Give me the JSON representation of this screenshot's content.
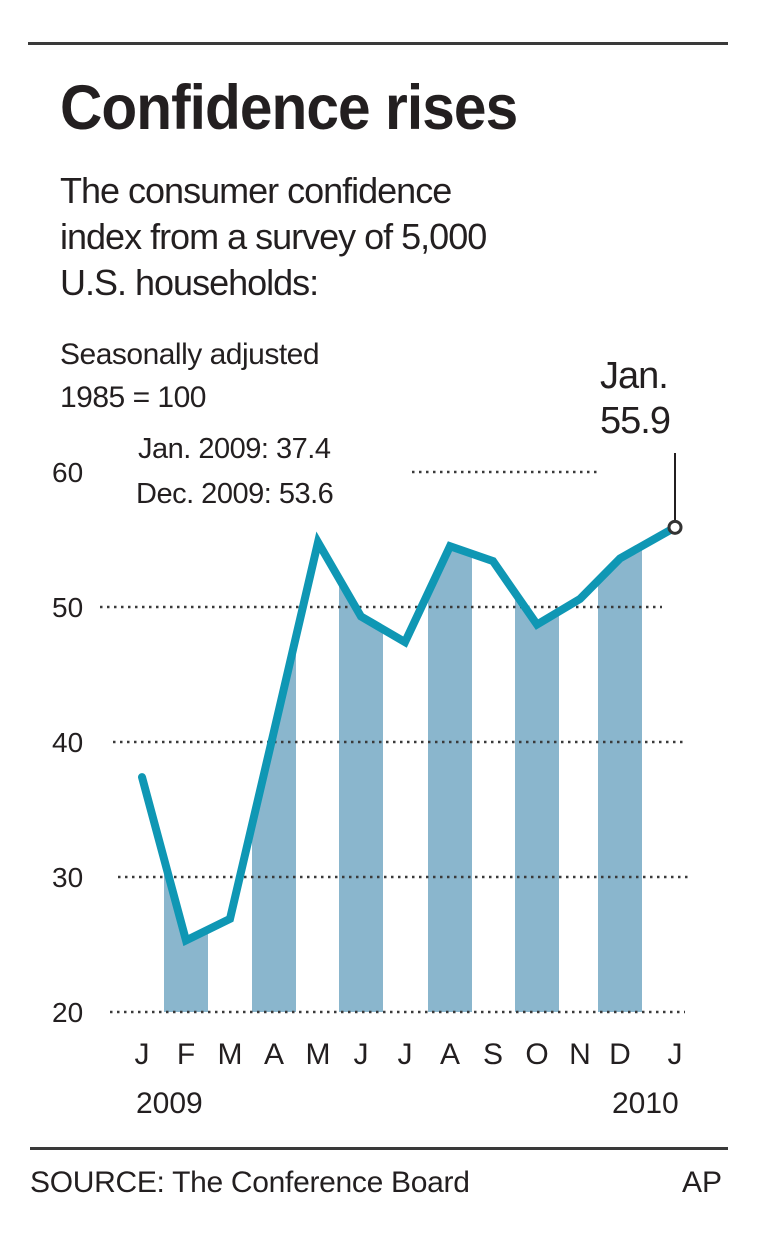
{
  "header": {
    "title": "Confidence rises",
    "subtitle_lines": [
      "The consumer confidence",
      "index from a survey of 5,000",
      "U.S. households:"
    ]
  },
  "notes": {
    "line1": "Seasonally adjusted",
    "line2": "1985 = 100"
  },
  "annotations": {
    "jan2009": "Jan. 2009: 37.4",
    "dec2009": "Dec. 2009: 53.6",
    "callout_month": "Jan.",
    "callout_value": "55.9"
  },
  "footer": {
    "source": "SOURCE: The Conference Board",
    "credit": "AP"
  },
  "colors": {
    "line": "#0f97b4",
    "band": "#8ab6cd",
    "grid": "#3a3a3a",
    "text": "#231f20"
  },
  "chart_data": {
    "type": "line",
    "title": "Confidence rises",
    "subtitle": "The consumer confidence index from a survey of 5,000 U.S. households:",
    "ylabel": "Seasonally adjusted 1985 = 100",
    "xlabel": "",
    "categories": [
      "J",
      "F",
      "M",
      "A",
      "M",
      "J",
      "J",
      "A",
      "S",
      "O",
      "N",
      "D",
      "J"
    ],
    "year_labels": [
      "2009",
      "2010"
    ],
    "series": [
      {
        "name": "Consumer confidence index",
        "values": [
          37.4,
          25.3,
          26.9,
          40.8,
          54.8,
          49.3,
          47.4,
          54.5,
          53.4,
          48.7,
          50.6,
          53.6,
          55.9
        ]
      }
    ],
    "shaded_months": [
      1,
      3,
      5,
      7,
      9,
      11
    ],
    "yticks": [
      20,
      30,
      40,
      50,
      60
    ],
    "ylim": [
      20,
      60
    ],
    "grid": true,
    "annotations": [
      {
        "label": "Jan. 2009: 37.4",
        "index": 0,
        "value": 37.4
      },
      {
        "label": "Dec. 2009: 53.6",
        "index": 11,
        "value": 53.6
      },
      {
        "label": "Jan. 55.9",
        "index": 12,
        "value": 55.9
      }
    ]
  }
}
